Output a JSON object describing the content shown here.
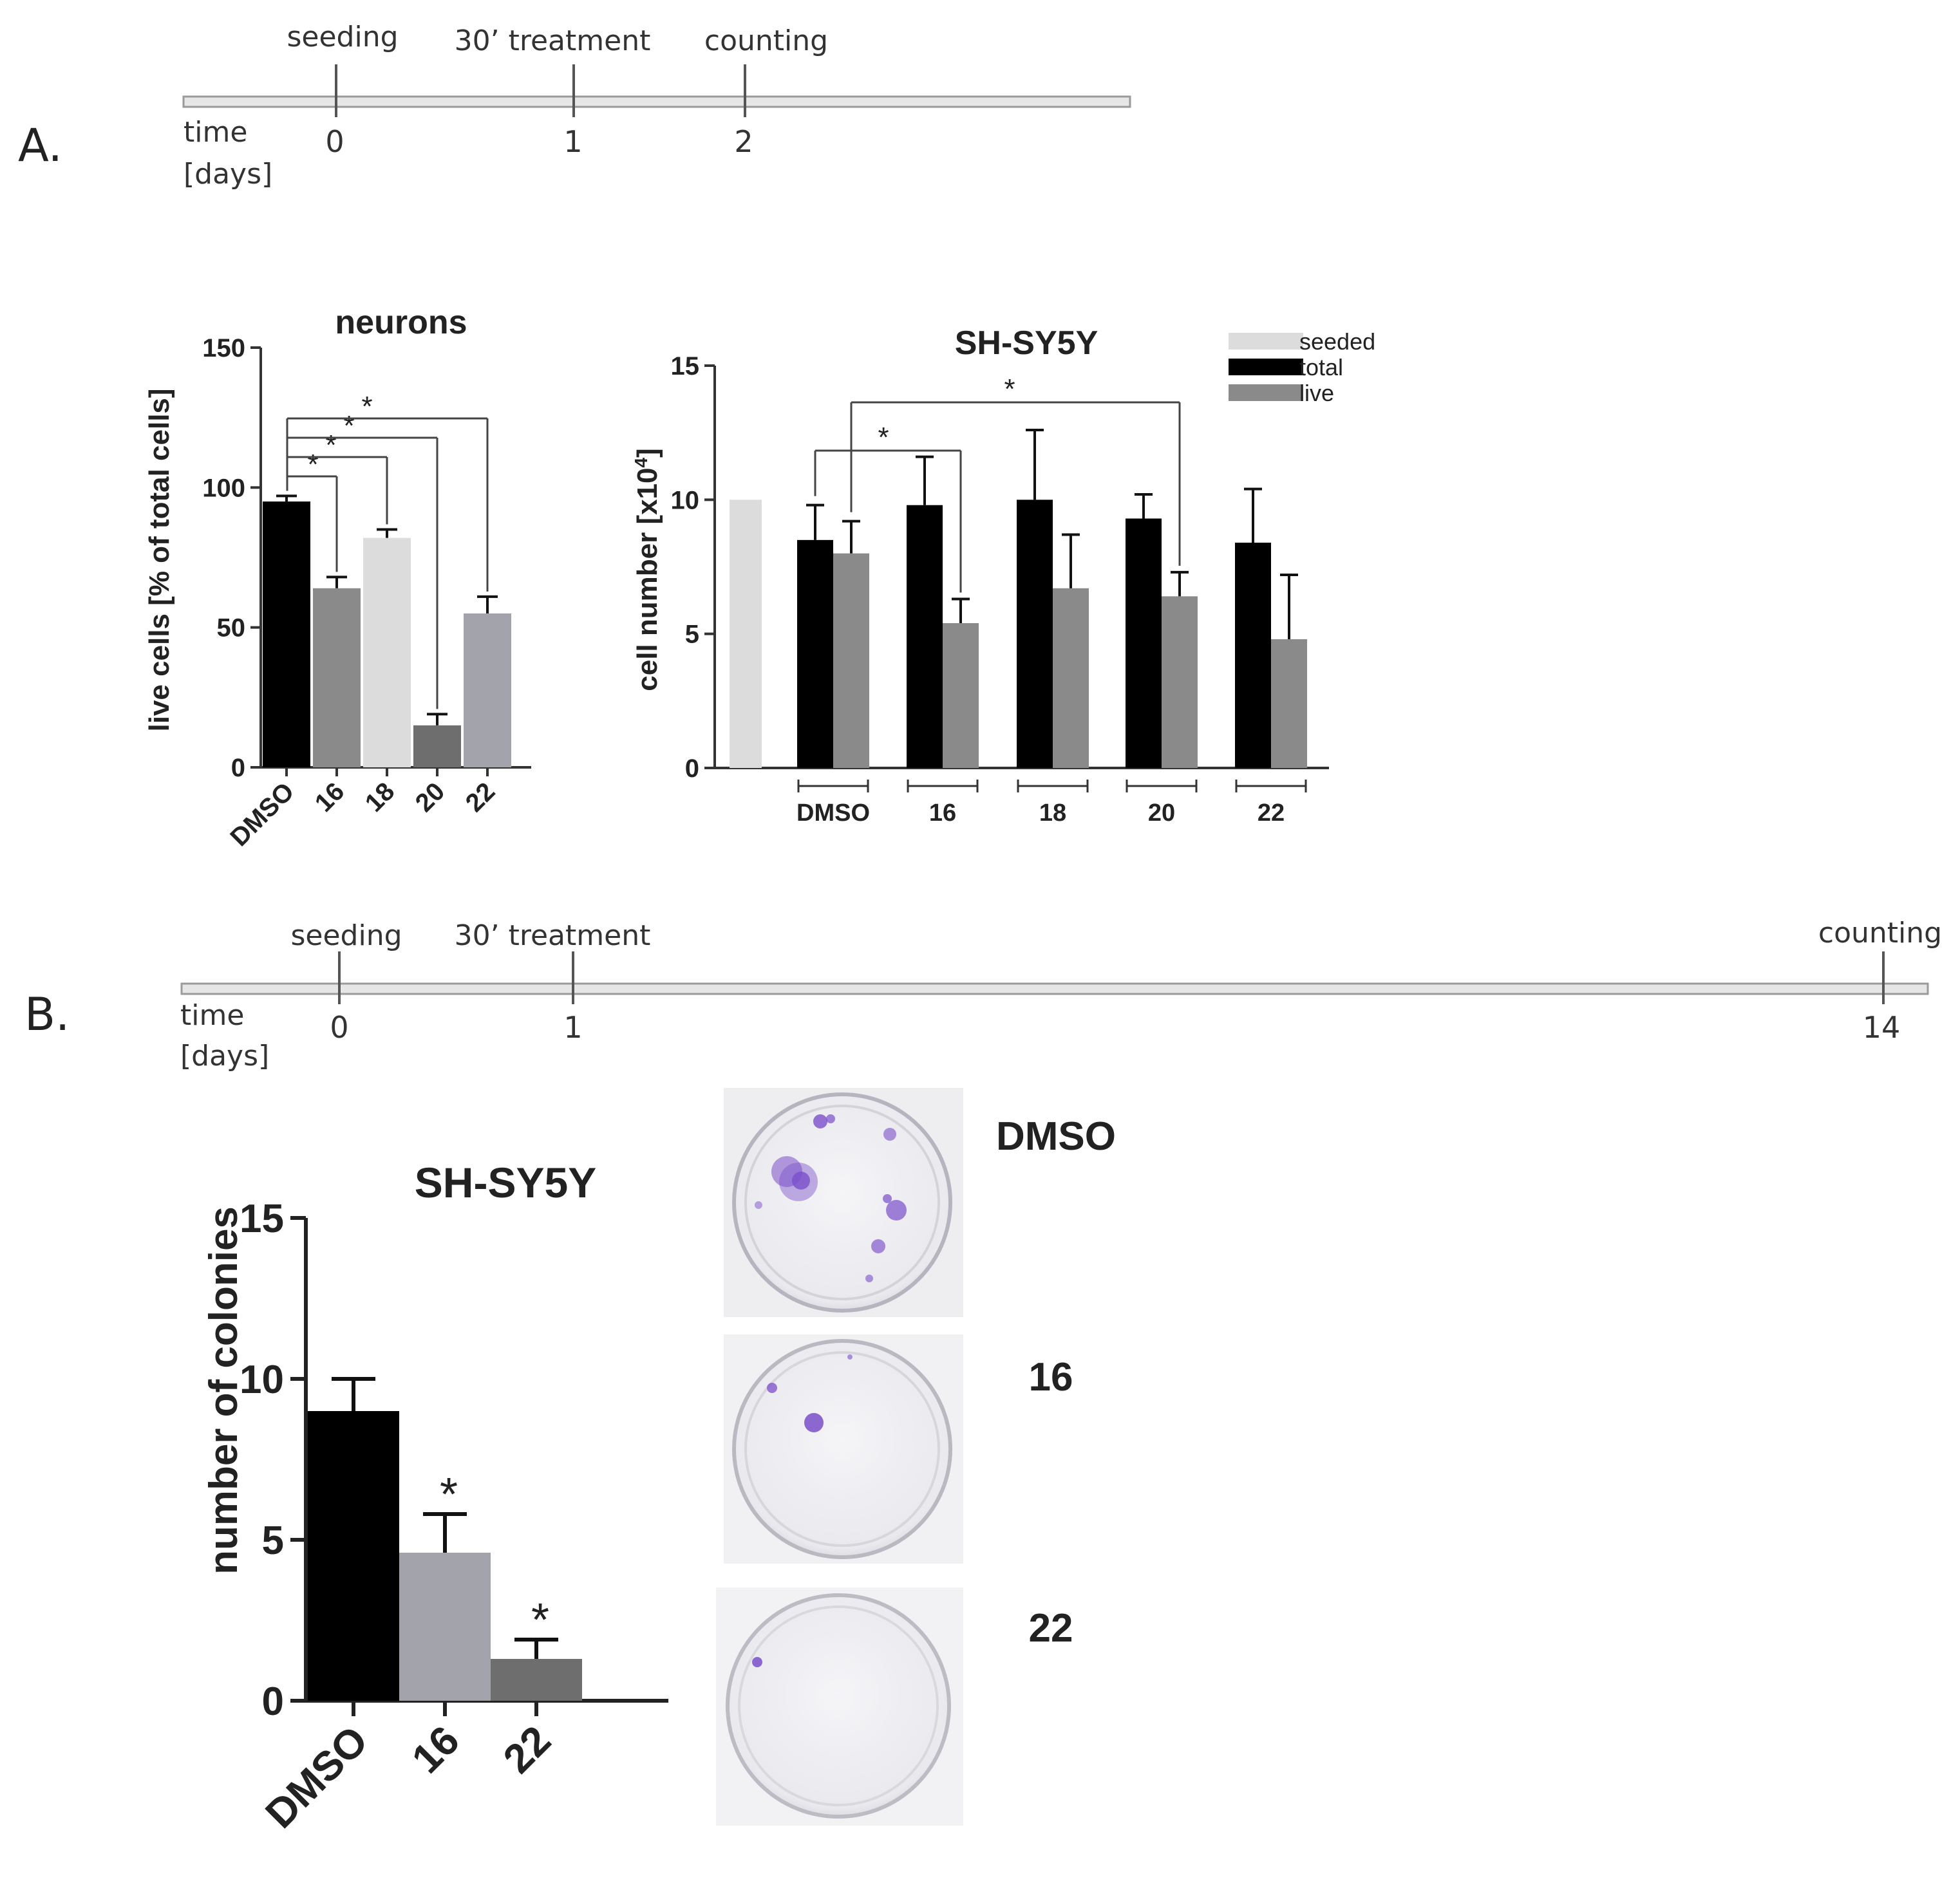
{
  "panel_a": {
    "label": "A.",
    "timeline": {
      "axis_label_line1": "time",
      "axis_label_line2": "[days]",
      "events": [
        {
          "label": "seeding",
          "day": "0"
        },
        {
          "label": "30’ treatment",
          "day": "1"
        },
        {
          "label": "counting",
          "day": "2"
        }
      ]
    }
  },
  "panel_b": {
    "label": "B.",
    "timeline": {
      "axis_label_line1": "time",
      "axis_label_line2": "[days]",
      "events": [
        {
          "label": "seeding",
          "day": "0"
        },
        {
          "label": "30’ treatment",
          "day": "1"
        },
        {
          "label": "counting",
          "day": "14"
        }
      ]
    },
    "plate_labels": [
      "DMSO",
      "16",
      "22"
    ]
  },
  "colors": {
    "black": "#000000",
    "dark_gray": "#6e6e6e",
    "mid_gray": "#8a8a8a",
    "light_gray": "#dcdcdc",
    "lavender_gray": "#a3a3ab",
    "crystal_violet": "#7b4fc9"
  },
  "chart_data": [
    {
      "id": "neurons",
      "type": "bar",
      "title": "neurons",
      "ylabel": "live cells [% of total cells]",
      "ylim": [
        0,
        150
      ],
      "yticks": [
        "0",
        "50",
        "100",
        "150"
      ],
      "categories": [
        "DMSO",
        "16",
        "18",
        "20",
        "22"
      ],
      "values": [
        95,
        64,
        82,
        15,
        55
      ],
      "errors": [
        2,
        4,
        3,
        4,
        6
      ],
      "bar_colors": [
        "#000000",
        "#8a8a8a",
        "#dcdcdc",
        "#6e6e6e",
        "#a3a3ab"
      ],
      "significance": [
        {
          "from": "DMSO",
          "to": "16",
          "label": "*"
        },
        {
          "from": "DMSO",
          "to": "18",
          "label": "*"
        },
        {
          "from": "DMSO",
          "to": "20",
          "label": "*"
        },
        {
          "from": "DMSO",
          "to": "22",
          "label": "*"
        }
      ]
    },
    {
      "id": "shsy5y_counts",
      "type": "bar",
      "title": "SH-SY5Y",
      "ylabel": "cell number [x10",
      "ylabel_sup": "4",
      "ylabel_end": "]",
      "ylim": [
        0,
        15
      ],
      "yticks": [
        "0",
        "5",
        "10",
        "15"
      ],
      "categories": [
        "DMSO",
        "16",
        "18",
        "20",
        "22"
      ],
      "seeded": {
        "name": "seeded",
        "value": 10
      },
      "series": [
        {
          "name": "total",
          "color": "#000000",
          "values": [
            8.5,
            9.8,
            10.0,
            9.3,
            8.4
          ],
          "errors": [
            1.3,
            1.8,
            2.6,
            0.9,
            2.0
          ]
        },
        {
          "name": "live",
          "color": "#8a8a8a",
          "values": [
            8.0,
            5.4,
            6.7,
            6.4,
            4.8
          ],
          "errors": [
            1.2,
            0.9,
            2.0,
            0.9,
            2.4
          ]
        }
      ],
      "legend": [
        "seeded",
        "total",
        "live"
      ],
      "legend_position": "top-right",
      "significance": [
        {
          "from": "DMSO total",
          "to": "16 live",
          "label": "*"
        },
        {
          "from": "DMSO live",
          "to": "20 live",
          "label": "*"
        }
      ]
    },
    {
      "id": "colonies",
      "type": "bar",
      "title": "SH-SY5Y",
      "ylabel": "number of colonies",
      "ylim": [
        0,
        15
      ],
      "yticks": [
        "0",
        "5",
        "10",
        "15"
      ],
      "categories": [
        "DMSO",
        "16",
        "22"
      ],
      "values": [
        9.0,
        4.6,
        1.3
      ],
      "errors": [
        1.0,
        1.2,
        0.6
      ],
      "bar_colors": [
        "#000000",
        "#a3a3ab",
        "#6e6e6e"
      ],
      "significance": [
        {
          "bar": "16",
          "label": "*"
        },
        {
          "bar": "22",
          "label": "*"
        }
      ]
    }
  ]
}
